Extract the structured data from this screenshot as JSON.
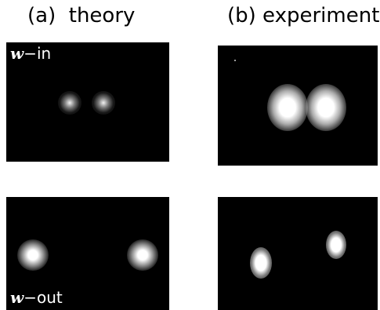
{
  "figure": {
    "column_a_title": "(a)  theory",
    "column_b_title": "(b) experiment",
    "row_top_label": {
      "symbol": "w",
      "suffix": "−in"
    },
    "row_bottom_label": {
      "symbol": "w",
      "suffix": "−out"
    }
  }
}
